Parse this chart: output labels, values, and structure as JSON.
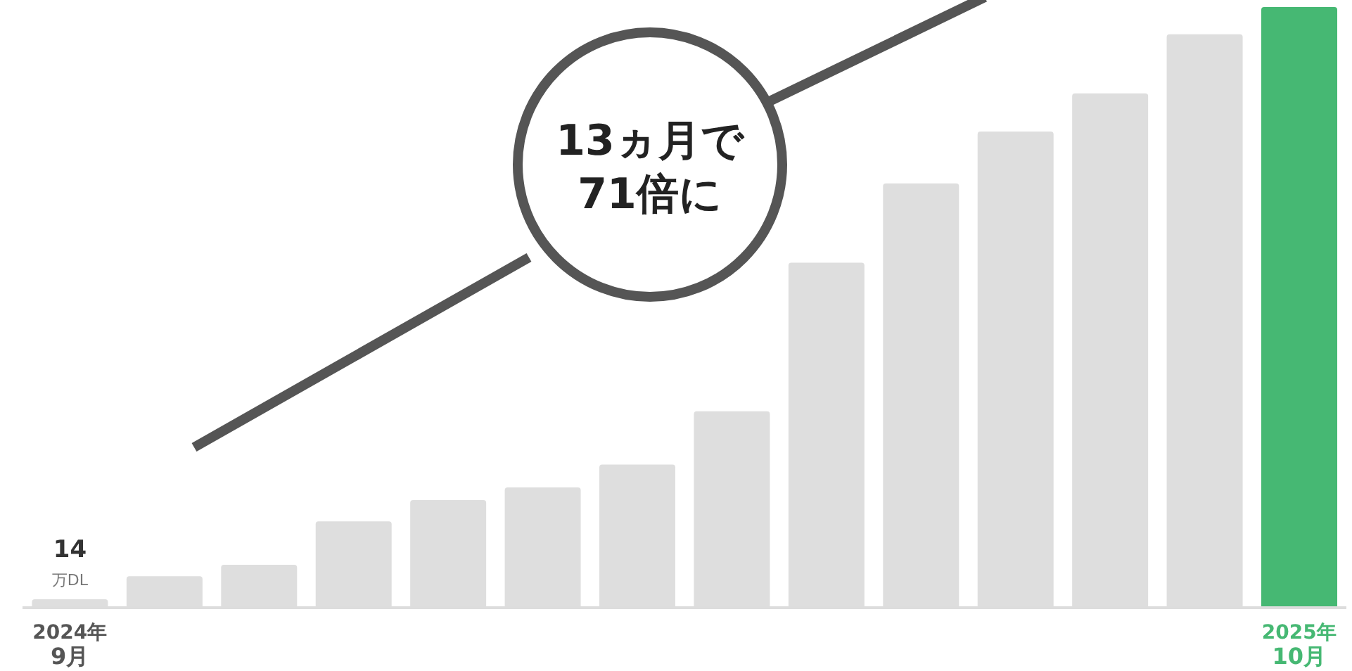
{
  "chart_data": {
    "type": "bar",
    "categories": [
      "2024年\n9月",
      null,
      null,
      null,
      null,
      null,
      null,
      null,
      null,
      null,
      null,
      null,
      null,
      "2025年\n10月"
    ],
    "values": [
      14,
      52,
      71,
      143,
      178,
      199,
      237,
      325,
      571,
      702,
      788,
      851,
      949,
      994
    ],
    "colors": [
      "#dedede",
      "#dedede",
      "#dedede",
      "#dedede",
      "#dedede",
      "#dedede",
      "#dedede",
      "#dedede",
      "#dedede",
      "#dedede",
      "#dedede",
      "#dedede",
      "#dedede",
      "#46b873"
    ],
    "value_labels": [
      "14\n万DL",
      null,
      null,
      null,
      null,
      null,
      null,
      null,
      null,
      null,
      null,
      null,
      null,
      null
    ],
    "annotations": [
      "13ヵ月で\n71倍に"
    ],
    "tick_labels": "x"
  }
}
